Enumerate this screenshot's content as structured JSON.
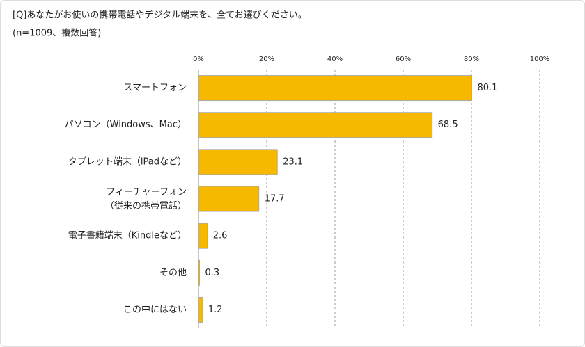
{
  "chart_data": {
    "type": "barh",
    "title": "[Q]あなたがお使いの携帯電話やデジタル端末を、全てお選びください。",
    "subtitle": "(n=1009、複数回答)",
    "categories": [
      "スマートフォン",
      "パソコン（Windows、Mac）",
      "タブレット端末（iPadなど）",
      "フィーチャーフォン\n（従来の携帯電話）",
      "電子書籍端末（Kindleなど）",
      "その他",
      "この中にはない"
    ],
    "values": [
      80.1,
      68.5,
      23.1,
      17.7,
      2.6,
      0.3,
      1.2
    ],
    "color": "#f7b800",
    "xlim": [
      0,
      100
    ],
    "xticks": [
      {
        "value": 0,
        "label": "0%"
      },
      {
        "value": 20,
        "label": "20%"
      },
      {
        "value": 40,
        "label": "40%"
      },
      {
        "value": 60,
        "label": "60%"
      },
      {
        "value": 80,
        "label": "80%"
      },
      {
        "value": 100,
        "label": "100%"
      }
    ],
    "grid": true
  }
}
